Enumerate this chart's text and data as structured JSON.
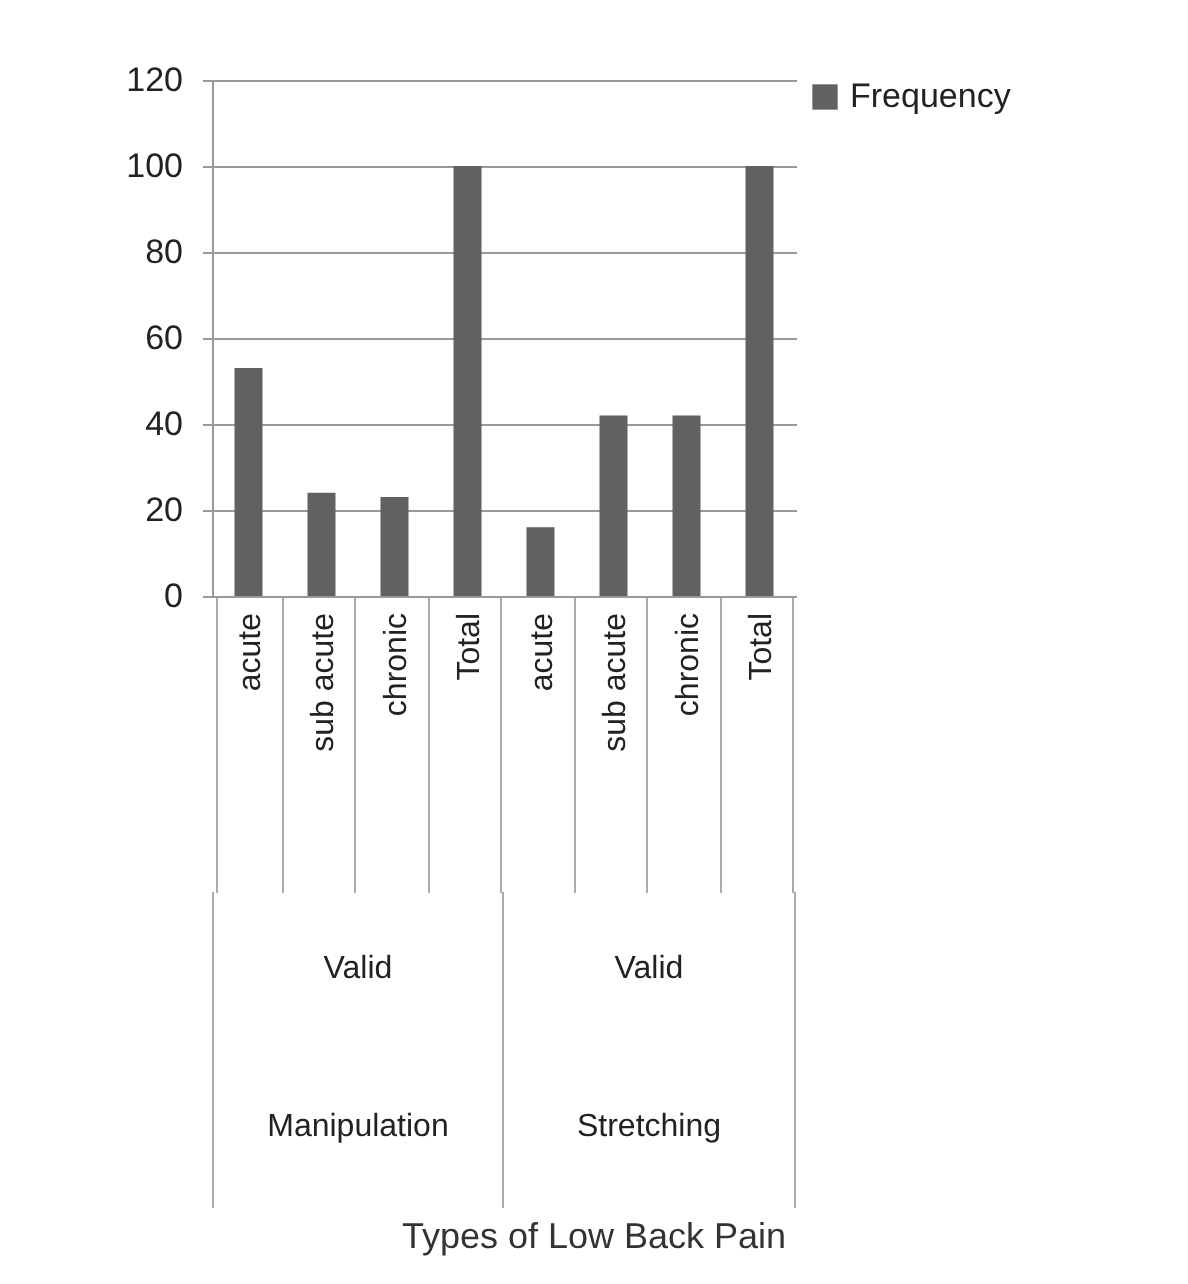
{
  "chart_data": {
    "type": "bar",
    "categories": [
      "acute",
      "sub acute",
      "chronic",
      "Total",
      "acute",
      "sub acute",
      "chronic",
      "Total"
    ],
    "series": [
      {
        "name": "Frequency",
        "color": "#616161",
        "values": [
          53,
          24,
          23,
          100,
          16,
          42,
          42,
          100
        ]
      }
    ],
    "annotations": [
      "Valid",
      "Valid",
      "Manipulation",
      "Stretching",
      "Types of Low Back Pain"
    ],
    "ylim": [
      0,
      120
    ],
    "yticks": [
      0,
      20,
      40,
      60,
      80,
      100,
      120
    ],
    "grid": "y",
    "legend": "right"
  }
}
